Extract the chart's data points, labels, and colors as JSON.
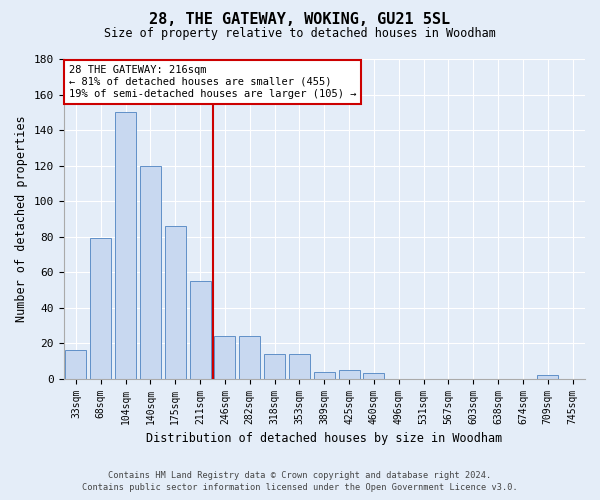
{
  "title": "28, THE GATEWAY, WOKING, GU21 5SL",
  "subtitle": "Size of property relative to detached houses in Woodham",
  "xlabel": "Distribution of detached houses by size in Woodham",
  "ylabel": "Number of detached properties",
  "bar_color": "#c8d8f0",
  "bar_edgecolor": "#6090c8",
  "background_color": "#e4edf8",
  "categories": [
    "33sqm",
    "68sqm",
    "104sqm",
    "140sqm",
    "175sqm",
    "211sqm",
    "246sqm",
    "282sqm",
    "318sqm",
    "353sqm",
    "389sqm",
    "425sqm",
    "460sqm",
    "496sqm",
    "531sqm",
    "567sqm",
    "603sqm",
    "638sqm",
    "674sqm",
    "709sqm",
    "745sqm"
  ],
  "values": [
    16,
    79,
    150,
    120,
    86,
    55,
    24,
    24,
    14,
    14,
    4,
    5,
    3,
    0,
    0,
    0,
    0,
    0,
    0,
    2,
    0
  ],
  "ylim": [
    0,
    180
  ],
  "yticks": [
    0,
    20,
    40,
    60,
    80,
    100,
    120,
    140,
    160,
    180
  ],
  "vline_x": 5.5,
  "annotation_line1": "28 THE GATEWAY: 216sqm",
  "annotation_line2": "← 81% of detached houses are smaller (455)",
  "annotation_line3": "19% of semi-detached houses are larger (105) →",
  "footer_line1": "Contains HM Land Registry data © Crown copyright and database right 2024.",
  "footer_line2": "Contains public sector information licensed under the Open Government Licence v3.0.",
  "grid_color": "#ffffff",
  "vline_color": "#cc0000",
  "annotation_box_edgecolor": "#cc0000",
  "annotation_box_facecolor": "#ffffff"
}
